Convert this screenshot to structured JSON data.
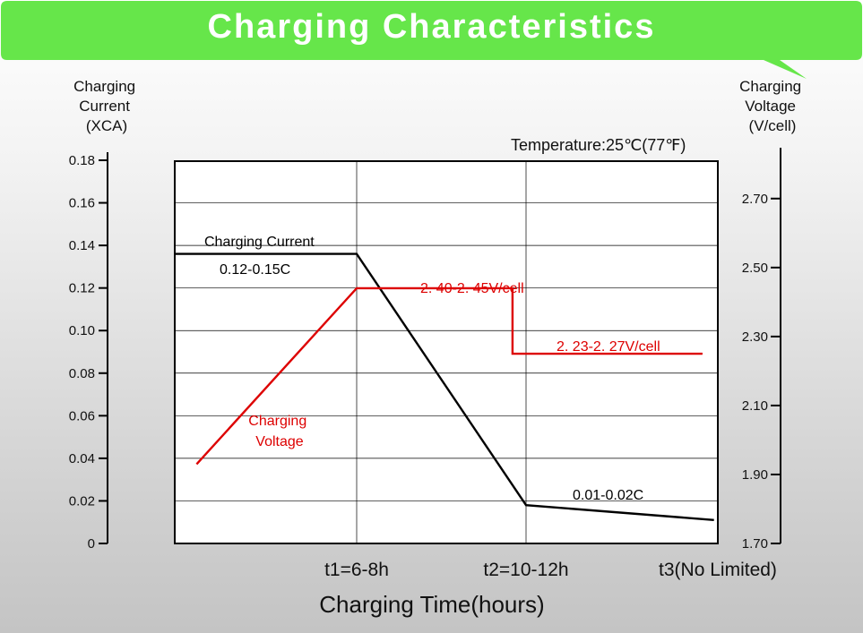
{
  "title": "Charging Characteristics",
  "colors": {
    "banner": "#66e64a",
    "current_line": "#000000",
    "voltage_line": "#dd0000",
    "grid": "#000000"
  },
  "chart_data": {
    "type": "line",
    "title": "Charging Characteristics",
    "condition": "Temperature:25℃(77℉)",
    "xlabel": "Charging Time(hours)",
    "x_ticks": [
      "t1=6-8h",
      "t2=10-12h",
      "t3(No Limited)"
    ],
    "y_left": {
      "label_lines": [
        "Charging",
        "Current",
        "(XCA)"
      ],
      "ticks": [
        "0",
        "0.02",
        "0.04",
        "0.06",
        "0.08",
        "0.10",
        "0.12",
        "0.14",
        "0.16",
        "0.18"
      ],
      "ylim": [
        0,
        0.18
      ]
    },
    "y_right": {
      "label_lines": [
        "Charging",
        "Voltage",
        "(V/cell)"
      ],
      "ticks": [
        "1.70",
        "1.90",
        "2.10",
        "2.30",
        "2.50",
        "2.70"
      ],
      "ylim": [
        1.7,
        2.85
      ]
    },
    "series": [
      {
        "name": "Charging Current",
        "axis": "left",
        "points": [
          [
            0,
            0.136
          ],
          [
            1,
            0.136
          ],
          [
            2,
            0.018
          ],
          [
            2.98,
            0.011
          ]
        ]
      },
      {
        "name": "Charging Voltage",
        "axis": "right",
        "points": [
          [
            0.12,
            1.93
          ],
          [
            1,
            2.44
          ],
          [
            1.92,
            2.44
          ],
          [
            1.92,
            2.25
          ],
          [
            2.92,
            2.25
          ]
        ]
      }
    ],
    "annotations": [
      {
        "text": "0.12-0.15C"
      },
      {
        "text": "2. 40-2. 45V/cell"
      },
      {
        "text": "2. 23-2. 27V/cell"
      },
      {
        "text": "0.01-0.02C"
      }
    ],
    "series_labels": {
      "current": "Charging Current",
      "voltage_lines": [
        "Charging",
        "Voltage"
      ]
    }
  }
}
